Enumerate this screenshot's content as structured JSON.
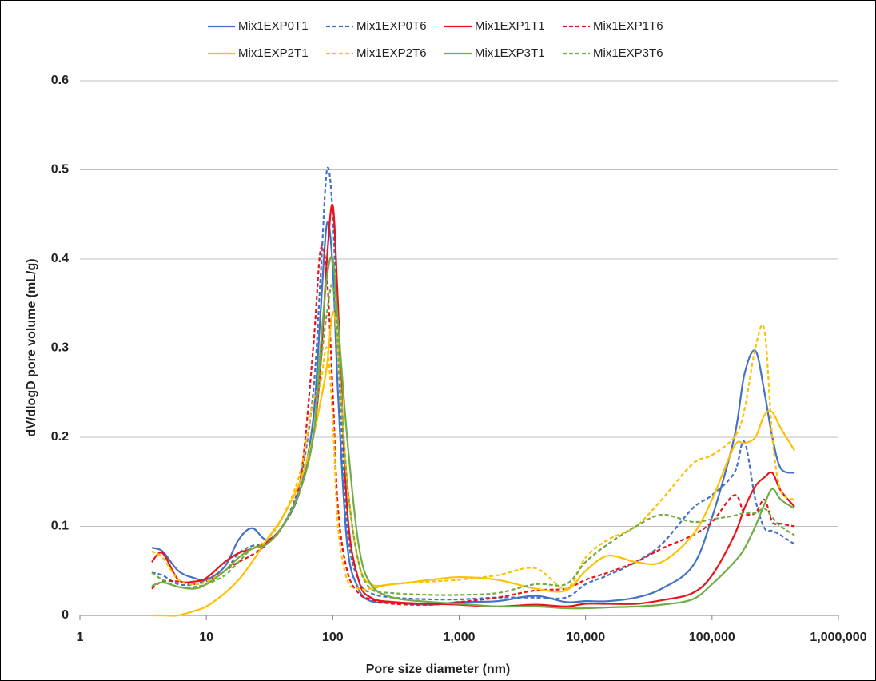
{
  "chart_data": {
    "type": "line",
    "x_label": "Pore size diameter (nm)",
    "y_label": "dV/dlogD pore volume  (mL/g)",
    "xscale": "log",
    "xlim": [
      1,
      1000000
    ],
    "xticks": [
      1,
      10,
      100,
      {
        "value": 1000,
        "label": "1,000"
      },
      {
        "value": 10000,
        "label": "10,000"
      },
      {
        "value": 100000,
        "label": "100,000"
      },
      {
        "value": 1000000,
        "label": "1,000,000"
      }
    ],
    "ylim": [
      0,
      0.6
    ],
    "yticks": [
      0,
      0.1,
      0.2,
      0.3,
      0.4,
      0.5,
      0.6
    ],
    "grid": true,
    "legend": "top",
    "x": [
      3.7,
      4.5,
      6,
      8,
      10,
      14,
      18,
      23,
      30,
      40,
      55,
      70,
      80,
      90,
      100,
      110,
      130,
      160,
      200,
      300,
      600,
      1000,
      2000,
      4000,
      7000,
      10000,
      15000,
      25000,
      40000,
      70000,
      100000,
      150000,
      180000,
      220000,
      260000,
      300000,
      350000,
      450000
    ],
    "series": [
      {
        "name": "Mix1EXP0T1",
        "color": "#4472c4",
        "style": "solid",
        "values": [
          0.076,
          0.072,
          0.05,
          0.042,
          0.04,
          0.055,
          0.085,
          0.098,
          0.085,
          0.1,
          0.14,
          0.22,
          0.34,
          0.44,
          0.39,
          0.25,
          0.08,
          0.03,
          0.016,
          0.014,
          0.012,
          0.015,
          0.016,
          0.022,
          0.015,
          0.016,
          0.016,
          0.02,
          0.03,
          0.055,
          0.11,
          0.2,
          0.27,
          0.297,
          0.25,
          0.2,
          0.165,
          0.16
        ]
      },
      {
        "name": "Mix1EXP0T6",
        "color": "#4472c4",
        "style": "dashed",
        "values": [
          0.048,
          0.045,
          0.035,
          0.035,
          0.04,
          0.05,
          0.07,
          0.078,
          0.082,
          0.1,
          0.15,
          0.25,
          0.38,
          0.5,
          0.45,
          0.3,
          0.1,
          0.04,
          0.025,
          0.02,
          0.018,
          0.018,
          0.02,
          0.02,
          0.02,
          0.035,
          0.045,
          0.06,
          0.08,
          0.12,
          0.135,
          0.16,
          0.195,
          0.13,
          0.098,
          0.095,
          0.09,
          0.08
        ]
      },
      {
        "name": "Mix1EXP1T1",
        "color": "#e8141b",
        "style": "solid",
        "values": [
          0.06,
          0.07,
          0.04,
          0.038,
          0.042,
          0.06,
          0.07,
          0.075,
          0.082,
          0.1,
          0.14,
          0.2,
          0.28,
          0.4,
          0.46,
          0.35,
          0.12,
          0.04,
          0.02,
          0.015,
          0.013,
          0.012,
          0.01,
          0.012,
          0.01,
          0.013,
          0.013,
          0.013,
          0.017,
          0.025,
          0.045,
          0.09,
          0.12,
          0.145,
          0.155,
          0.16,
          0.14,
          0.122
        ]
      },
      {
        "name": "Mix1EXP1T6",
        "color": "#e8141b",
        "style": "dashed",
        "values": [
          0.03,
          0.038,
          0.038,
          0.035,
          0.038,
          0.05,
          0.06,
          0.068,
          0.08,
          0.1,
          0.15,
          0.3,
          0.41,
          0.38,
          0.25,
          0.12,
          0.05,
          0.025,
          0.018,
          0.013,
          0.012,
          0.015,
          0.02,
          0.028,
          0.03,
          0.04,
          0.048,
          0.06,
          0.075,
          0.09,
          0.105,
          0.135,
          0.115,
          0.115,
          0.13,
          0.105,
          0.103,
          0.1
        ]
      },
      {
        "name": "Mix1EXP2T1",
        "color": "#ffc000",
        "style": "solid",
        "values": [
          0,
          0,
          0,
          0.005,
          0.01,
          0.025,
          0.04,
          0.06,
          0.085,
          0.11,
          0.15,
          0.2,
          0.24,
          0.28,
          0.34,
          0.3,
          0.15,
          0.06,
          0.035,
          0.035,
          0.04,
          0.043,
          0.04,
          0.03,
          0.028,
          0.05,
          0.067,
          0.06,
          0.06,
          0.09,
          0.13,
          0.19,
          0.193,
          0.2,
          0.225,
          0.228,
          0.21,
          0.185
        ]
      },
      {
        "name": "Mix1EXP2T6",
        "color": "#ffc000",
        "style": "dashed",
        "values": [
          0.072,
          0.065,
          0.04,
          0.035,
          0.038,
          0.05,
          0.065,
          0.075,
          0.085,
          0.11,
          0.16,
          0.24,
          0.26,
          0.3,
          0.22,
          0.1,
          0.04,
          0.03,
          0.03,
          0.035,
          0.038,
          0.04,
          0.045,
          0.053,
          0.03,
          0.065,
          0.085,
          0.1,
          0.13,
          0.17,
          0.18,
          0.2,
          0.23,
          0.3,
          0.32,
          0.2,
          0.14,
          0.13
        ]
      },
      {
        "name": "Mix1EXP3T1",
        "color": "#70ad47",
        "style": "solid",
        "values": [
          0.033,
          0.037,
          0.032,
          0.03,
          0.035,
          0.05,
          0.065,
          0.075,
          0.08,
          0.1,
          0.14,
          0.2,
          0.3,
          0.38,
          0.4,
          0.33,
          0.2,
          0.08,
          0.035,
          0.02,
          0.015,
          0.013,
          0.01,
          0.01,
          0.008,
          0.008,
          0.009,
          0.01,
          0.012,
          0.018,
          0.035,
          0.06,
          0.075,
          0.1,
          0.125,
          0.142,
          0.13,
          0.12
        ]
      },
      {
        "name": "Mix1EXP3T6",
        "color": "#70ad47",
        "style": "dashed",
        "values": [
          0.048,
          0.04,
          0.032,
          0.032,
          0.035,
          0.045,
          0.06,
          0.075,
          0.08,
          0.1,
          0.14,
          0.2,
          0.28,
          0.34,
          0.37,
          0.3,
          0.15,
          0.06,
          0.03,
          0.025,
          0.023,
          0.023,
          0.025,
          0.035,
          0.035,
          0.06,
          0.08,
          0.1,
          0.113,
          0.105,
          0.108,
          0.112,
          0.115,
          0.115,
          0.12,
          0.11,
          0.1,
          0.09
        ]
      }
    ]
  }
}
